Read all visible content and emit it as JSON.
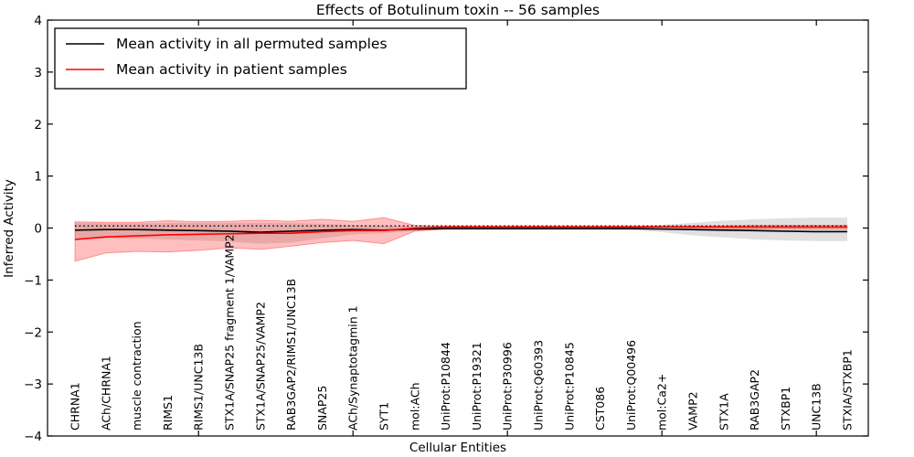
{
  "title": "Effects of Botulinum toxin -- 56 samples",
  "xlabel": "Cellular Entities",
  "ylabel": "Inferred Activity",
  "legend": {
    "position": "upper left",
    "items": [
      {
        "label": "Mean activity in all permuted samples",
        "color": "#000000"
      },
      {
        "label": "Mean activity in patient samples",
        "color": "#ff0000"
      }
    ]
  },
  "colors": {
    "permuted_line": "#000000",
    "patient_line": "#ff0000",
    "permuted_band": "rgba(0,0,0,0.12)",
    "patient_band": "rgba(255,0,0,0.25)",
    "patient_band_edge": "rgba(255,0,0,0.35)",
    "axis": "#000000"
  },
  "chart_data": {
    "type": "line",
    "title": "Effects of Botulinum toxin -- 56 samples",
    "xlabel": "Cellular Entities",
    "ylabel": "Inferred Activity",
    "ylim": [
      -4,
      4
    ],
    "grid": false,
    "legend_position": "upper left",
    "ytick_values": [
      4,
      3,
      2,
      1,
      0,
      -1,
      -2,
      -3,
      -4
    ],
    "ytick_labels": [
      "4",
      "3",
      "2",
      "1",
      "0",
      "−1",
      "−2",
      "−3",
      "−4"
    ],
    "xtick_major_indices": [
      4,
      9,
      14,
      19,
      24
    ],
    "categories": [
      "CHRNA1",
      "ACh/CHRNA1",
      "muscle contraction",
      "RIMS1",
      "RIMS1/UNC13B",
      "STX1A/SNAP25 fragment 1/VAMP2",
      "STX1A/SNAP25/VAMP2",
      "RAB3GAP2/RIMS1/UNC13B",
      "SNAP25",
      "ACh/Synaptotagmin 1",
      "SYT1",
      "mol:ACh",
      "UniProt:P10844",
      "UniProt:P19321",
      "UniProt:P30996",
      "UniProt:Q60393",
      "UniProt:P10845",
      "CST086",
      "UniProt:Q00496",
      "mol:Ca2+",
      "VAMP2",
      "STX1A",
      "RAB3GAP2",
      "STXBP1",
      "UNC13B",
      "STXIA/STXBP1"
    ],
    "series": [
      {
        "name": "Mean activity in all permuted samples",
        "color": "#000000",
        "values": [
          -0.04,
          -0.03,
          -0.03,
          -0.04,
          -0.05,
          -0.06,
          -0.08,
          -0.06,
          -0.04,
          -0.03,
          -0.04,
          -0.02,
          -0.01,
          -0.01,
          -0.01,
          -0.01,
          -0.01,
          -0.01,
          -0.01,
          -0.02,
          -0.03,
          -0.04,
          -0.05,
          -0.06,
          -0.07,
          -0.07
        ]
      },
      {
        "name": "Mean activity in patient samples",
        "color": "#ff0000",
        "values": [
          -0.22,
          -0.17,
          -0.15,
          -0.13,
          -0.12,
          -0.11,
          -0.1,
          -0.1,
          -0.07,
          -0.05,
          -0.05,
          0.0,
          0.02,
          0.02,
          0.02,
          0.02,
          0.02,
          0.02,
          0.02,
          0.02,
          0.02,
          0.02,
          0.02,
          0.02,
          0.02,
          0.02
        ]
      }
    ],
    "bands": [
      {
        "name": "permuted-samples-std-band",
        "upper": [
          0.1,
          0.09,
          0.09,
          0.1,
          0.1,
          0.1,
          0.1,
          0.1,
          0.08,
          0.06,
          0.05,
          0.03,
          0.02,
          0.02,
          0.02,
          0.02,
          0.02,
          0.02,
          0.03,
          0.06,
          0.1,
          0.14,
          0.17,
          0.19,
          0.2,
          0.2
        ],
        "lower": [
          -0.22,
          -0.2,
          -0.2,
          -0.22,
          -0.24,
          -0.26,
          -0.3,
          -0.28,
          -0.2,
          -0.12,
          -0.1,
          -0.06,
          -0.03,
          -0.03,
          -0.03,
          -0.03,
          -0.03,
          -0.03,
          -0.04,
          -0.08,
          -0.14,
          -0.18,
          -0.22,
          -0.24,
          -0.25,
          -0.25
        ]
      },
      {
        "name": "patient-samples-std-band",
        "upper": [
          0.12,
          0.11,
          0.11,
          0.14,
          0.12,
          0.13,
          0.15,
          0.13,
          0.17,
          0.13,
          0.2,
          0.05,
          0.04,
          0.04,
          0.04,
          0.04,
          0.04,
          0.04,
          0.04,
          0.04,
          0.04,
          0.04,
          0.05,
          0.05,
          0.05,
          0.05
        ],
        "lower": [
          -0.64,
          -0.48,
          -0.45,
          -0.46,
          -0.43,
          -0.38,
          -0.41,
          -0.35,
          -0.28,
          -0.24,
          -0.3,
          -0.06,
          -0.02,
          -0.02,
          -0.02,
          -0.02,
          -0.02,
          -0.02,
          -0.02,
          -0.02,
          -0.02,
          -0.02,
          -0.02,
          -0.02,
          -0.02,
          -0.02
        ]
      }
    ],
    "reference_line": {
      "style": "dotted",
      "color": "#000000",
      "value": 0.04
    }
  }
}
